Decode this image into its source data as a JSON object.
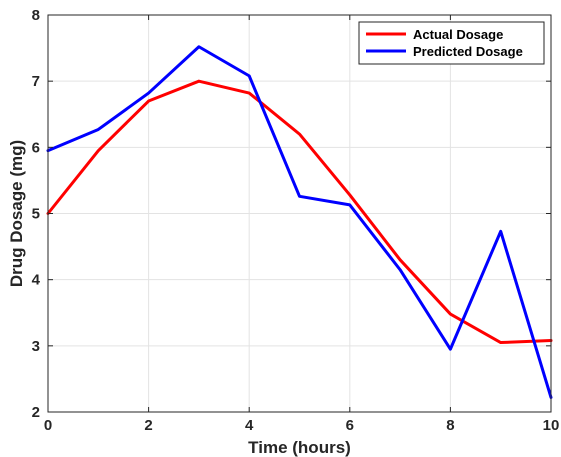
{
  "chart_data": {
    "type": "line",
    "title": "",
    "xlabel": "Time (hours)",
    "ylabel": "Drug Dosage (mg)",
    "xlim": [
      0,
      10
    ],
    "ylim": [
      2,
      8
    ],
    "xticks": [
      0,
      2,
      4,
      6,
      8,
      10
    ],
    "yticks": [
      2,
      3,
      4,
      5,
      6,
      7,
      8
    ],
    "grid": true,
    "legend_position": "top-right",
    "x": [
      0,
      1,
      2,
      3,
      4,
      5,
      6,
      7,
      8,
      9,
      10
    ],
    "series": [
      {
        "name": "Actual Dosage",
        "color": "#ff0000",
        "values": [
          5.0,
          5.95,
          6.7,
          7.0,
          6.82,
          6.2,
          5.28,
          4.3,
          3.48,
          3.05,
          3.08
        ]
      },
      {
        "name": "Predicted Dosage",
        "color": "#0000ff",
        "values": [
          5.95,
          6.27,
          6.82,
          7.52,
          7.08,
          5.26,
          5.13,
          4.15,
          2.95,
          4.73,
          2.22
        ]
      }
    ]
  }
}
